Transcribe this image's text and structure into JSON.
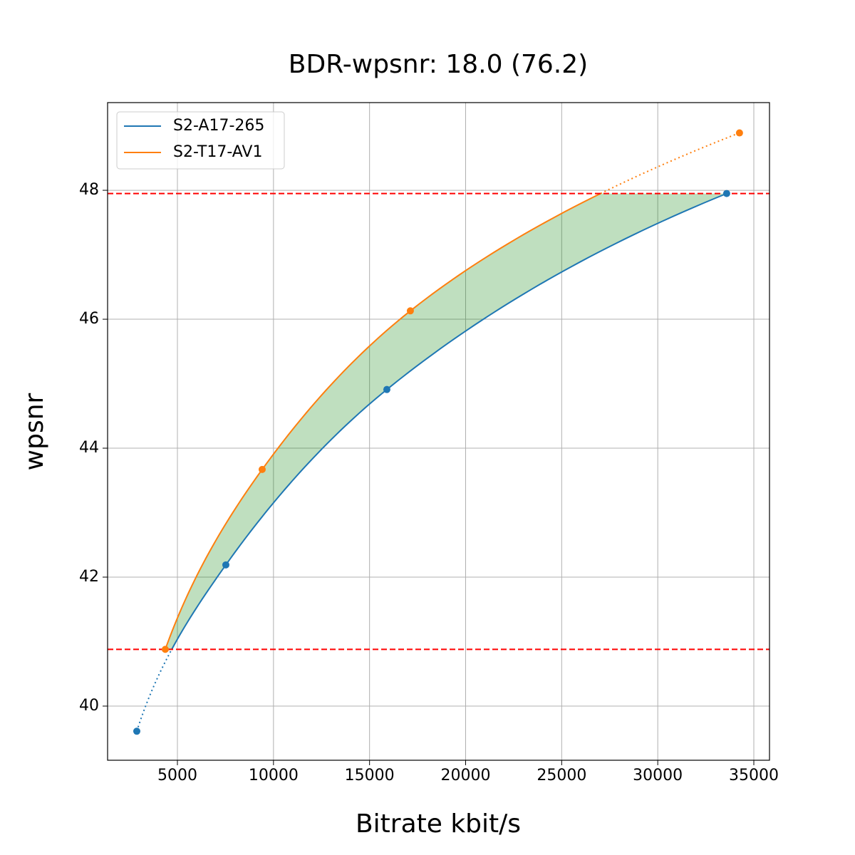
{
  "chart_data": {
    "type": "rd-curve",
    "title": "BDR-wpsnr: 18.0 (76.2)",
    "x_label": "Bitrate kbit/s",
    "y_label": "wpsnr",
    "series": [
      {
        "name": "S2-A17-265",
        "color": "#1f77b4",
        "x": [
          2886,
          7521,
          15901,
          33587
        ],
        "values": [
          39.61,
          42.19,
          44.91,
          47.95
        ]
      },
      {
        "name": "S2-T17-AV1",
        "color": "#ff7f0e",
        "x": [
          4369,
          9412,
          17124,
          34254
        ],
        "values": [
          40.88,
          43.67,
          46.13,
          48.89
        ]
      }
    ],
    "xlim": [
      1366,
      35816
    ],
    "ylim": [
      39.16,
      49.36
    ],
    "xticks": [
      5000,
      10000,
      15000,
      20000,
      25000,
      30000,
      35000
    ],
    "yticks": [
      40,
      42,
      44,
      46,
      48
    ],
    "grid": true,
    "legend": "upper left",
    "fill_color": "#008000",
    "limit_color": "#ff0000"
  }
}
